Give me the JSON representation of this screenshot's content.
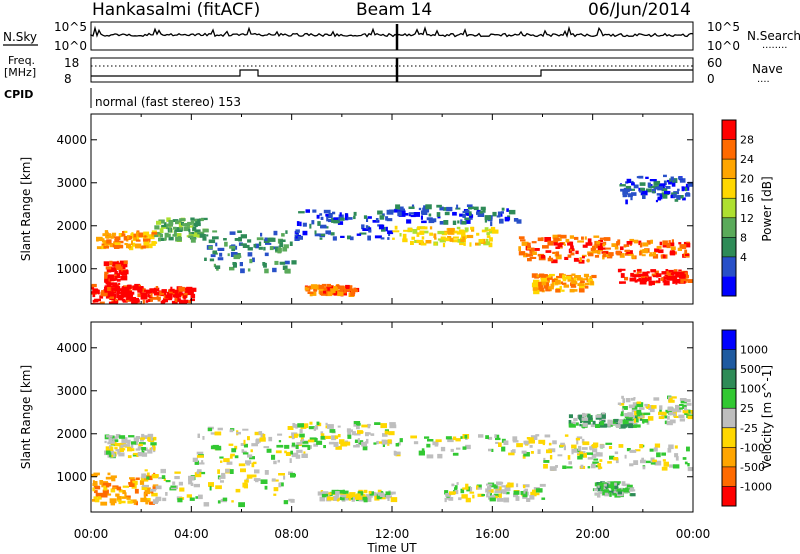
{
  "header": {
    "site": "Hankasalmi (fitACF)",
    "beam": "Beam 14",
    "date": "06/Jun/2014"
  },
  "noise_panel": {
    "left_label": "N.Sky",
    "left_ticks": [
      "10^5",
      "10^0"
    ],
    "right_ticks": [
      "10^5",
      "10^0"
    ],
    "right_label": "N.Search",
    "right_legend": "........"
  },
  "freq_panel": {
    "left_label_1": "Freq.",
    "left_label_2": "[MHz]",
    "left_ticks": [
      "18",
      "8"
    ],
    "right_ticks": [
      "60",
      "0"
    ],
    "right_label": "Nave",
    "right_legend": "...."
  },
  "cpid": {
    "label": "CPID",
    "text": "normal (fast stereo) 153"
  },
  "axes": {
    "ylabel": "Slant Range [km]",
    "yticks": [
      "4000",
      "3000",
      "2000",
      "1000"
    ],
    "xticks": [
      "00:00",
      "04:00",
      "08:00",
      "12:00",
      "16:00",
      "20:00",
      "00:00"
    ],
    "xlabel": "Time UT"
  },
  "colors": {
    "power": [
      "#0000ff",
      "#2850c8",
      "#2e8b57",
      "#5aaa5a",
      "#aee030",
      "#ffd700",
      "#ffa500",
      "#ff6a00",
      "#ff0000"
    ],
    "velocity": [
      "#ff0000",
      "#ff6a00",
      "#ffa500",
      "#ffd700",
      "#bebebe",
      "#32c832",
      "#2e8b57",
      "#1e5aa0",
      "#0000ff"
    ]
  },
  "chart_data": [
    {
      "type": "heatmap",
      "title": "",
      "xlabel": "Time UT",
      "ylabel": "Slant Range [km]",
      "colorbar_label": "Power [dB]",
      "colorbar_ticks": [
        "28",
        "24",
        "20",
        "16",
        "12",
        "8",
        "4"
      ],
      "xlim": [
        0,
        24
      ],
      "ylim": [
        180,
        4600
      ],
      "bands": [
        {
          "t0": 0.0,
          "t1": 2.0,
          "r0": 200,
          "r1": 650,
          "level": 8
        },
        {
          "t0": 2.0,
          "t1": 4.0,
          "r0": 250,
          "r1": 600,
          "level": 8
        },
        {
          "t0": 0.5,
          "t1": 1.3,
          "r0": 400,
          "r1": 1200,
          "level": 8
        },
        {
          "t0": 0.2,
          "t1": 2.5,
          "r0": 1500,
          "r1": 1900,
          "level": 6
        },
        {
          "t0": 2.5,
          "t1": 4.5,
          "r0": 1700,
          "r1": 2200,
          "level": 3
        },
        {
          "t0": 4.5,
          "t1": 8.0,
          "r0": 1000,
          "r1": 1900,
          "level": 2
        },
        {
          "t0": 8.0,
          "t1": 12.0,
          "r0": 1700,
          "r1": 2400,
          "level": 1
        },
        {
          "t0": 8.5,
          "t1": 10.5,
          "r0": 450,
          "r1": 650,
          "level": 7
        },
        {
          "t0": 12.0,
          "t1": 16.0,
          "r0": 1600,
          "r1": 2000,
          "level": 5
        },
        {
          "t0": 12.0,
          "t1": 17.0,
          "r0": 2100,
          "r1": 2500,
          "level": 1
        },
        {
          "t0": 17.0,
          "t1": 20.5,
          "r0": 1200,
          "r1": 1800,
          "level": 7
        },
        {
          "t0": 17.5,
          "t1": 20.0,
          "r0": 500,
          "r1": 900,
          "level": 6
        },
        {
          "t0": 20.0,
          "t1": 23.8,
          "r0": 1300,
          "r1": 1700,
          "level": 7
        },
        {
          "t0": 21.0,
          "t1": 23.8,
          "r0": 700,
          "r1": 1000,
          "level": 8
        },
        {
          "t0": 21.0,
          "t1": 23.8,
          "r0": 2600,
          "r1": 3200,
          "level": 1
        }
      ]
    },
    {
      "type": "heatmap",
      "title": "",
      "xlabel": "Time UT",
      "ylabel": "Slant Range [km]",
      "colorbar_label": "Velocity [m s^-1]",
      "colorbar_ticks": [
        "1000",
        "500",
        "100",
        "25",
        "-25",
        "-100",
        "-500",
        "-1000"
      ],
      "xlim": [
        0,
        24
      ],
      "ylim": [
        180,
        4600
      ],
      "bands": [
        {
          "t0": 0.0,
          "t1": 2.5,
          "r0": 400,
          "r1": 1100,
          "level": 2
        },
        {
          "t0": 2.0,
          "t1": 8.0,
          "r0": 400,
          "r1": 1200,
          "level": 4
        },
        {
          "t0": 0.5,
          "t1": 2.5,
          "r0": 1500,
          "r1": 2000,
          "level": 4
        },
        {
          "t0": 4.0,
          "t1": 8.5,
          "r0": 1300,
          "r1": 2200,
          "level": 4
        },
        {
          "t0": 8.0,
          "t1": 12.0,
          "r0": 1700,
          "r1": 2300,
          "level": 4
        },
        {
          "t0": 9.0,
          "t1": 12.0,
          "r0": 500,
          "r1": 700,
          "level": 4
        },
        {
          "t0": 12.0,
          "t1": 20.0,
          "r0": 1500,
          "r1": 2000,
          "level": 4
        },
        {
          "t0": 14.0,
          "t1": 18.0,
          "r0": 500,
          "r1": 900,
          "level": 4
        },
        {
          "t0": 18.0,
          "t1": 23.8,
          "r0": 1200,
          "r1": 1800,
          "level": 4
        },
        {
          "t0": 20.0,
          "t1": 21.5,
          "r0": 600,
          "r1": 900,
          "level": 5
        },
        {
          "t0": 19.0,
          "t1": 22.0,
          "r0": 2200,
          "r1": 2500,
          "level": 5
        },
        {
          "t0": 21.0,
          "t1": 23.8,
          "r0": 2300,
          "r1": 2900,
          "level": 4
        }
      ]
    }
  ]
}
